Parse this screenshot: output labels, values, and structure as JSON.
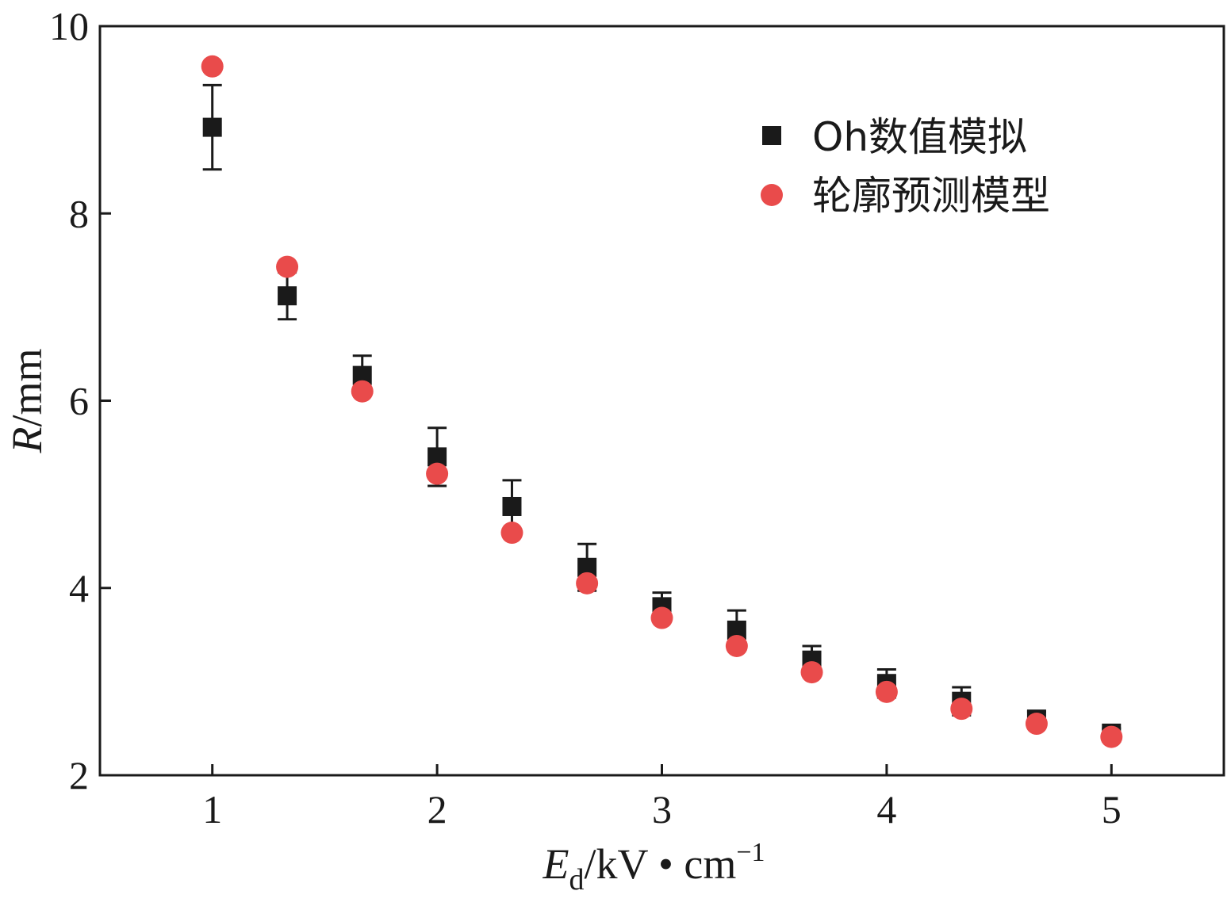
{
  "chart_data": {
    "type": "scatter",
    "xlim": [
      0.5,
      5.5
    ],
    "ylim": [
      2,
      10
    ],
    "x_ticks": [
      1,
      2,
      3,
      4,
      5
    ],
    "y_ticks": [
      2,
      4,
      6,
      8,
      10
    ],
    "x_tick_labels": [
      "1",
      "2",
      "3",
      "4",
      "5"
    ],
    "y_tick_labels": [
      "2",
      "4",
      "6",
      "8",
      "10"
    ],
    "xlabel": {
      "main": "E",
      "sub": "d",
      "rest": "/kV • cm",
      "sup": "−1"
    },
    "ylabel": {
      "italic": "R",
      "rest": "/mm"
    },
    "grid": false,
    "legend_position": "top-right",
    "series": [
      {
        "name": "Oh数值模拟",
        "marker": "square",
        "color": "#1a1a1a",
        "x": [
          1.0,
          1.333,
          1.667,
          2.0,
          2.333,
          2.667,
          3.0,
          3.333,
          3.667,
          4.0,
          4.333,
          4.667,
          5.0
        ],
        "y": [
          8.92,
          7.12,
          6.27,
          5.4,
          4.87,
          4.22,
          3.8,
          3.55,
          3.23,
          2.98,
          2.79,
          2.6,
          2.45
        ],
        "error": [
          0.45,
          0.25,
          0.21,
          0.31,
          0.28,
          0.25,
          0.15,
          0.21,
          0.15,
          0.15,
          0.15,
          0.08,
          0.05
        ]
      },
      {
        "name": "轮廓预测模型",
        "marker": "circle",
        "color": "#e94b4b",
        "x": [
          1.0,
          1.333,
          1.667,
          2.0,
          2.333,
          2.667,
          3.0,
          3.333,
          3.667,
          4.0,
          4.333,
          4.667,
          5.0
        ],
        "y": [
          9.57,
          7.43,
          6.1,
          5.22,
          4.59,
          4.05,
          3.68,
          3.38,
          3.1,
          2.89,
          2.71,
          2.55,
          2.41
        ]
      }
    ]
  }
}
